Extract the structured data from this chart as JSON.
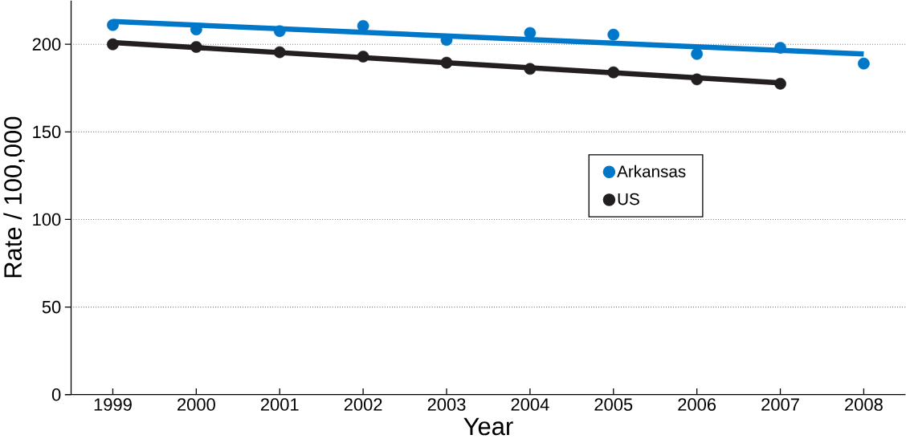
{
  "chart_data": {
    "type": "scatter",
    "xlabel": "Year",
    "ylabel": "Rate / 100,000",
    "xlim": [
      1998.5,
      2008.5
    ],
    "xticks": [
      1999,
      2000,
      2001,
      2002,
      2003,
      2004,
      2005,
      2006,
      2007,
      2008
    ],
    "ylim": [
      0,
      225
    ],
    "yticks": [
      0,
      50,
      100,
      150,
      200
    ],
    "grid": "y",
    "legend": "right",
    "marker": "circle",
    "series": [
      {
        "name": "Arkansas",
        "color": "#0077c8",
        "x": [
          1999,
          2000,
          2001,
          2002,
          2003,
          2004,
          2005,
          2006,
          2007,
          2008
        ],
        "values": [
          211,
          208.5,
          207.5,
          210.5,
          202.5,
          206.5,
          205.5,
          194.5,
          198,
          189
        ]
      },
      {
        "name": "US",
        "color": "#231f20",
        "x": [
          1999,
          2000,
          2001,
          2002,
          2003,
          2004,
          2005,
          2006,
          2007
        ],
        "values": [
          200,
          198.5,
          195.5,
          193,
          189.5,
          186,
          184,
          180,
          177.5
        ]
      },
      {
        "type": "line",
        "color": "#0077c8",
        "marker": "none",
        "x": [
          1999,
          2008
        ],
        "values": [
          213,
          194.5
        ]
      },
      {
        "type": "line",
        "color": "#231f20",
        "marker": "none",
        "x": [
          1999,
          2007
        ],
        "values": [
          201,
          178
        ]
      }
    ]
  }
}
